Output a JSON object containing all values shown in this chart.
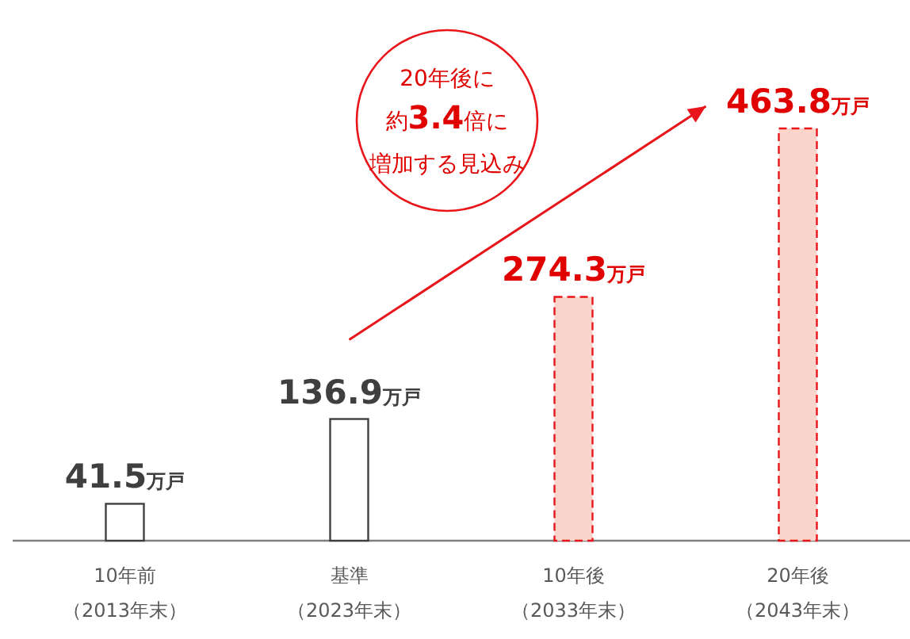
{
  "chart_data": {
    "type": "bar",
    "categories": [
      "10年前（2013年末）",
      "基準（2023年末）",
      "10年後（2033年末）",
      "20年後（2043年末）"
    ],
    "series": [
      {
        "color": "#ffffff",
        "line_style": "solid",
        "values": [
          41.5,
          136.9,
          null,
          null
        ],
        "value_labels": [
          "41.5万戸",
          "136.9万戸",
          null,
          null
        ]
      },
      {
        "color": "#fbd5cc",
        "line_style": "dashed",
        "values": [
          null,
          null,
          274.3,
          463.8
        ],
        "value_labels": [
          null,
          null,
          "274.3万戸",
          "463.8万戸"
        ]
      }
    ],
    "annotations": [
      "20年後に",
      "約3.4倍に",
      "増加する見込み"
    ]
  }
}
